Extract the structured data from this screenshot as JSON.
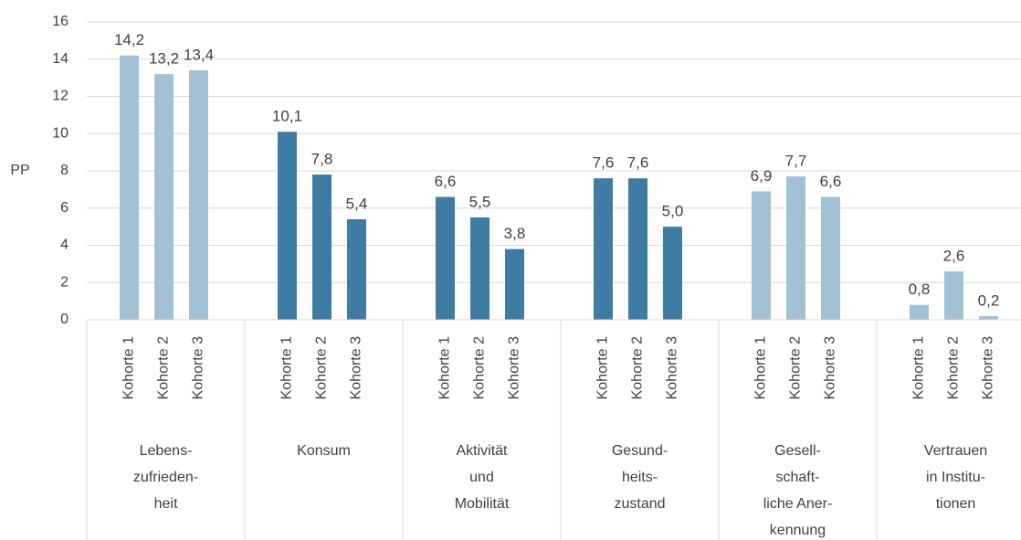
{
  "chart_data": {
    "type": "bar",
    "y_label": "PP",
    "ylim": [
      0,
      16
    ],
    "yticks": [
      0,
      2,
      4,
      6,
      8,
      10,
      12,
      14,
      16
    ],
    "grid": true,
    "groups": [
      {
        "name": [
          "Lebens-",
          "zufrieden-",
          "heit"
        ],
        "color": "#a3c1d4",
        "categories": [
          "Kohorte 1",
          "Kohorte 2",
          "Kohorte 3"
        ],
        "values": [
          14.2,
          13.2,
          13.4
        ],
        "value_labels": [
          "14,2",
          "13,2",
          "13,4"
        ]
      },
      {
        "name": [
          "Konsum"
        ],
        "color": "#3e7ca3",
        "categories": [
          "Kohorte 1",
          "Kohorte 2",
          "Kohorte 3"
        ],
        "values": [
          10.1,
          7.8,
          5.4
        ],
        "value_labels": [
          "10,1",
          "7,8",
          "5,4"
        ]
      },
      {
        "name": [
          "Aktivität",
          "und",
          "Mobilität"
        ],
        "color": "#3e7ca3",
        "categories": [
          "Kohorte 1",
          "Kohorte 2",
          "Kohorte 3"
        ],
        "values": [
          6.6,
          5.5,
          3.8
        ],
        "value_labels": [
          "6,6",
          "5,5",
          "3,8"
        ]
      },
      {
        "name": [
          "Gesund-",
          "heits-",
          "zustand"
        ],
        "color": "#3e7ca3",
        "categories": [
          "Kohorte 1",
          "Kohorte 2",
          "Kohorte 3"
        ],
        "values": [
          7.6,
          7.6,
          5.0
        ],
        "value_labels": [
          "7,6",
          "7,6",
          "5,0"
        ]
      },
      {
        "name": [
          "Gesell-",
          "schaft-",
          "liche Aner-",
          "kennung"
        ],
        "color": "#a3c1d4",
        "categories": [
          "Kohorte 1",
          "Kohorte 2",
          "Kohorte 3"
        ],
        "values": [
          6.9,
          7.7,
          6.6
        ],
        "value_labels": [
          "6,9",
          "7,7",
          "6,6"
        ]
      },
      {
        "name": [
          "Vertrauen",
          "in Institu-",
          "tionen"
        ],
        "color": "#a3c1d4",
        "categories": [
          "Kohorte 1",
          "Kohorte 2",
          "Kohorte 3"
        ],
        "values": [
          0.8,
          2.6,
          0.2
        ],
        "value_labels": [
          "0,8",
          "2,6",
          "0,2"
        ]
      }
    ]
  }
}
